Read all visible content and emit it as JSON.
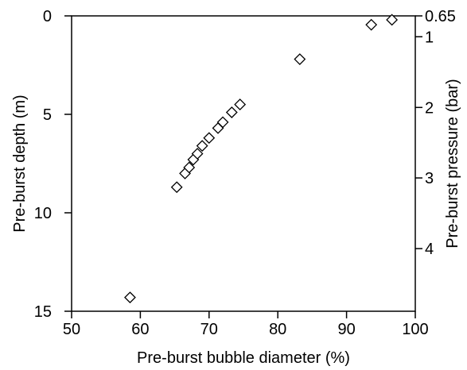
{
  "chart_data": {
    "type": "scatter",
    "xlabel": "Pre-burst bubble diameter (%)",
    "ylabel_left": "Pre-burst depth (m)",
    "ylabel_right": "Pre-burst pressure (bar)",
    "xlim": [
      50,
      100
    ],
    "ylim_left": [
      15,
      0
    ],
    "x_ticks": [
      "50",
      "60",
      "70",
      "80",
      "90",
      "100"
    ],
    "y_left_ticks": [
      "0",
      "5",
      "10",
      "15"
    ],
    "y_right_ticks": [
      {
        "label": "0.65",
        "depth": 0
      },
      {
        "label": "1",
        "depth": 1.06
      },
      {
        "label": "2",
        "depth": 4.65
      },
      {
        "label": "3",
        "depth": 8.23
      },
      {
        "label": "4",
        "depth": 11.82
      }
    ],
    "marker": "open-diamond",
    "points": [
      {
        "x": 58.5,
        "y": 14.3
      },
      {
        "x": 65.3,
        "y": 8.7
      },
      {
        "x": 66.5,
        "y": 8.0
      },
      {
        "x": 67.1,
        "y": 7.7
      },
      {
        "x": 67.7,
        "y": 7.3
      },
      {
        "x": 68.3,
        "y": 7.0
      },
      {
        "x": 69.0,
        "y": 6.6
      },
      {
        "x": 70.0,
        "y": 6.2
      },
      {
        "x": 71.3,
        "y": 5.7
      },
      {
        "x": 72.0,
        "y": 5.4
      },
      {
        "x": 73.3,
        "y": 4.9
      },
      {
        "x": 74.5,
        "y": 4.5
      },
      {
        "x": 83.2,
        "y": 2.2
      },
      {
        "x": 93.6,
        "y": 0.45
      },
      {
        "x": 96.6,
        "y": 0.2
      }
    ]
  }
}
